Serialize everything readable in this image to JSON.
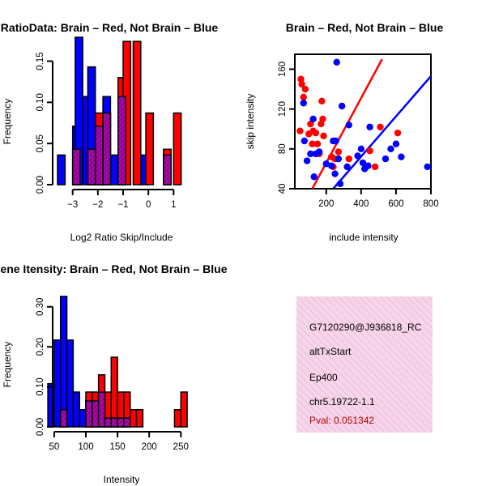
{
  "colors": {
    "brain": "#ff0000",
    "not_brain": "#0000ff",
    "overlap": "#990099",
    "panel_bg": "#f7d5ea",
    "panel_stripe": "#ecb4d6",
    "pval": "#b30000"
  },
  "chart_data": [
    {
      "id": "ratio-hist",
      "type": "bar",
      "title": "RatioData: Brain – Red, Not Brain – Blue",
      "xlabel": "Log2 Ratio Skip/Include",
      "ylabel": "Frequency",
      "xlim": [
        -3.6,
        1.6
      ],
      "ylim": [
        0,
        0.18
      ],
      "xticks": [
        -3,
        -2,
        -1,
        0,
        1
      ],
      "xtick_labels": [
        "−3",
        "−2",
        "−1",
        "0",
        "1"
      ],
      "yticks": [
        0,
        0.05,
        0.1,
        0.15
      ],
      "ytick_labels": [
        "0.00",
        "0.05",
        "0.10",
        "0.15"
      ],
      "bin_width": 0.3,
      "series": [
        {
          "name": "Not Brain",
          "color": "blue",
          "bins": [
            [
              -3.6,
              0.036
            ],
            [
              -3.0,
              0.071
            ],
            [
              -2.9,
              0.179
            ],
            [
              -2.6,
              0.107
            ],
            [
              -2.4,
              0.143
            ],
            [
              -2.1,
              0.071
            ],
            [
              -1.8,
              0.107
            ],
            [
              -1.5,
              0.036
            ],
            [
              -1.2,
              0.107
            ],
            [
              -0.3,
              0.036
            ],
            [
              0.6,
              0.036
            ]
          ]
        },
        {
          "name": "Brain",
          "color": "red",
          "bins": [
            [
              -3.0,
              0.043
            ],
            [
              -2.4,
              0.043
            ],
            [
              -2.1,
              0.087
            ],
            [
              -1.8,
              0.087
            ],
            [
              -1.2,
              0.13
            ],
            [
              -1.0,
              0.174
            ],
            [
              -0.6,
              0.174
            ],
            [
              -0.1,
              0.087
            ],
            [
              0.6,
              0.043
            ],
            [
              1.0,
              0.087
            ]
          ]
        }
      ]
    },
    {
      "id": "scatter",
      "type": "scatter",
      "title": "Brain – Red, Not Brain – Blue",
      "xlabel": "include intensity",
      "ylabel": "skip intensity",
      "xlim": [
        20,
        800
      ],
      "ylim": [
        40,
        175
      ],
      "xticks": [
        200,
        400,
        600,
        800
      ],
      "xtick_labels": [
        "200",
        "400",
        "600",
        "800"
      ],
      "yticks": [
        40,
        80,
        120,
        160
      ],
      "ytick_labels": [
        "40",
        "80",
        "120",
        "160"
      ],
      "series": [
        {
          "name": "Brain",
          "color": "red",
          "points": [
            [
              50,
              98
            ],
            [
              55,
              150
            ],
            [
              60,
              145
            ],
            [
              70,
              132
            ],
            [
              80,
              140
            ],
            [
              100,
              95
            ],
            [
              110,
              105
            ],
            [
              120,
              85
            ],
            [
              125,
              98
            ],
            [
              140,
              96
            ],
            [
              150,
              85
            ],
            [
              160,
              75
            ],
            [
              170,
              105
            ],
            [
              175,
              128
            ],
            [
              180,
              110
            ],
            [
              185,
              93
            ],
            [
              230,
              72
            ],
            [
              240,
              62
            ],
            [
              250,
              70
            ],
            [
              270,
              77
            ],
            [
              330,
              70
            ],
            [
              450,
              78
            ],
            [
              480,
              62
            ],
            [
              510,
              102
            ],
            [
              610,
              96
            ]
          ],
          "fit": {
            "x1": 120,
            "y1": 40,
            "x2": 520,
            "y2": 170
          }
        },
        {
          "name": "Not Brain",
          "color": "blue",
          "points": [
            [
              70,
              126
            ],
            [
              75,
              88
            ],
            [
              90,
              68
            ],
            [
              110,
              75
            ],
            [
              125,
              110
            ],
            [
              130,
              52
            ],
            [
              140,
              75
            ],
            [
              160,
              77
            ],
            [
              200,
              65
            ],
            [
              230,
              63
            ],
            [
              240,
              88
            ],
            [
              250,
              55
            ],
            [
              255,
              88
            ],
            [
              260,
              167
            ],
            [
              270,
              70
            ],
            [
              280,
              45
            ],
            [
              290,
              123
            ],
            [
              320,
              62
            ],
            [
              330,
              104
            ],
            [
              380,
              73
            ],
            [
              400,
              80
            ],
            [
              410,
              66
            ],
            [
              420,
              60
            ],
            [
              440,
              63
            ],
            [
              450,
              102
            ],
            [
              540,
              70
            ],
            [
              570,
              80
            ],
            [
              600,
              85
            ],
            [
              630,
              72
            ],
            [
              780,
              62
            ]
          ],
          "fit": {
            "x1": 240,
            "y1": 40,
            "x2": 800,
            "y2": 153
          }
        }
      ]
    },
    {
      "id": "intensity-hist",
      "type": "bar",
      "title": "Gene Itensity: Brain – Red, Not Brain – Blue",
      "xlabel": "Intensity",
      "ylabel": "Frequency",
      "xlim": [
        45,
        265
      ],
      "ylim": [
        0,
        0.34
      ],
      "xticks": [
        50,
        100,
        150,
        200,
        250
      ],
      "xtick_labels": [
        "50",
        "100",
        "150",
        "200",
        "250"
      ],
      "yticks": [
        0,
        0.1,
        0.2,
        0.3
      ],
      "ytick_labels": [
        "0.00",
        "0.10",
        "0.20",
        "0.30"
      ],
      "bin_width": 10,
      "series": [
        {
          "name": "Not Brain",
          "color": "blue",
          "bins": [
            [
              40,
              0.108
            ],
            [
              50,
              0.217
            ],
            [
              60,
              0.326
            ],
            [
              70,
              0.217
            ],
            [
              80,
              0.087
            ],
            [
              90,
              0.043
            ],
            [
              100,
              0.065
            ],
            [
              110,
              0.065
            ],
            [
              120,
              0.087
            ],
            [
              130,
              0.022
            ],
            [
              140,
              0.022
            ],
            [
              150,
              0.022
            ],
            [
              160,
              0.022
            ]
          ]
        },
        {
          "name": "Brain",
          "color": "red",
          "bins": [
            [
              60,
              0.043
            ],
            [
              100,
              0.087
            ],
            [
              110,
              0.087
            ],
            [
              120,
              0.13
            ],
            [
              130,
              0.087
            ],
            [
              140,
              0.174
            ],
            [
              150,
              0.087
            ],
            [
              160,
              0.087
            ],
            [
              170,
              0.043
            ],
            [
              180,
              0.043
            ],
            [
              240,
              0.043
            ],
            [
              250,
              0.087
            ]
          ]
        }
      ]
    }
  ],
  "info_panel": {
    "probe_id": "G7120290@J936818_RC",
    "event_type": "altTxStart",
    "tissue": "Ep400",
    "location": "chr5.19722-1.1",
    "pval": "Pval: 0.051342"
  }
}
